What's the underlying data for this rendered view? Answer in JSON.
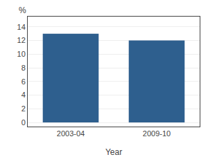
{
  "chart_data": {
    "type": "bar",
    "categories": [
      "2003-04",
      "2009-10"
    ],
    "values": [
      13,
      12
    ],
    "color": "#2E5F8E",
    "xlabel": "Year",
    "ylabel": "%",
    "ylim": [
      -0.6,
      15.5
    ],
    "yticks": [
      0,
      2,
      4,
      6,
      8,
      10,
      12,
      14
    ],
    "grid": true
  }
}
